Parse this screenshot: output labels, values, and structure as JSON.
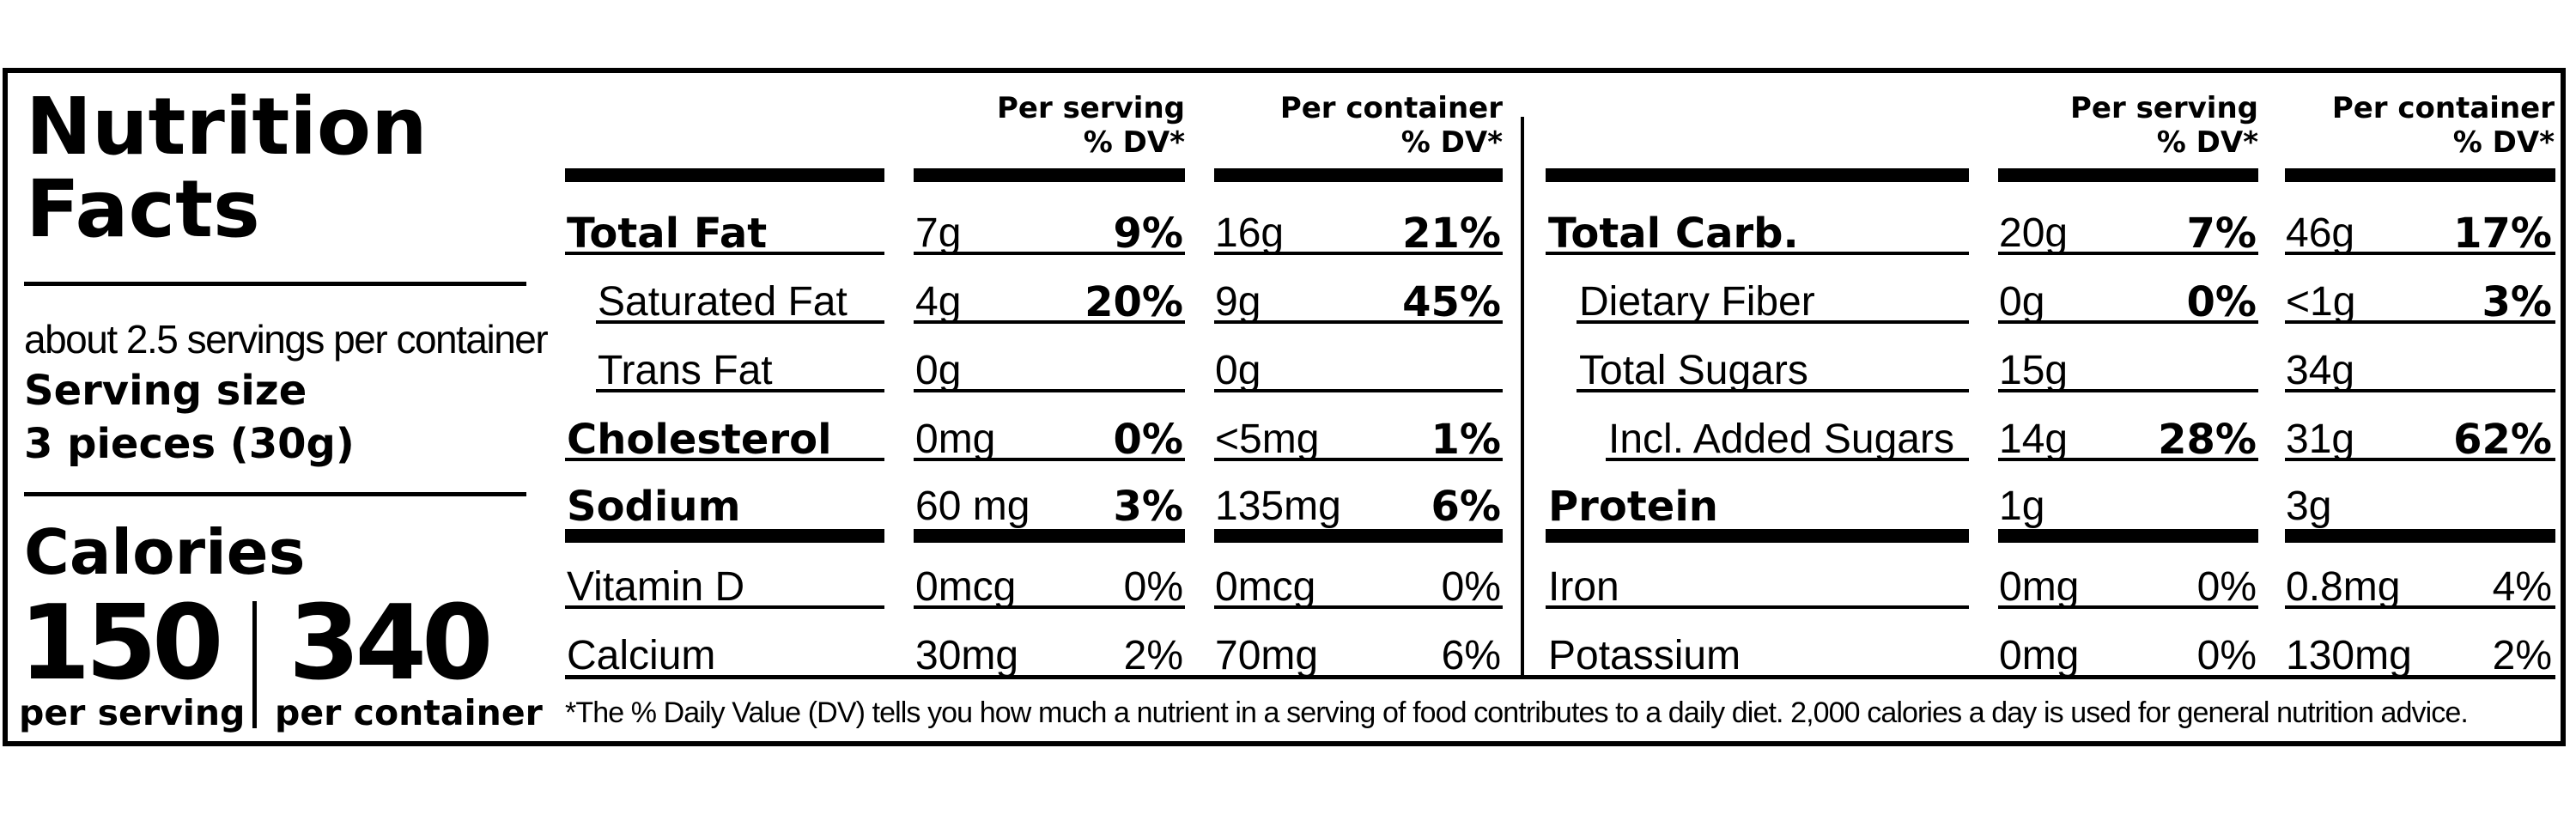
{
  "header": {
    "title_line1": "Nutrition",
    "title_line2": "Facts"
  },
  "servings": {
    "per_container": "about 2.5 servings per container",
    "size_label": "Serving size",
    "size_value": "3 pieces (30g)"
  },
  "calories": {
    "label": "Calories",
    "per_serving_value": "150",
    "per_serving_label": "per serving",
    "per_container_value": "340",
    "per_container_label": "per container"
  },
  "col_headers": {
    "per_serving": "Per serving",
    "per_container": "Per container",
    "dv": "% DV*"
  },
  "left_rows": [
    {
      "name": "Total Fat",
      "bold": true,
      "indent": 0,
      "s_amt": "7g",
      "s_dv": "9%",
      "c_amt": "16g",
      "c_dv": "21%"
    },
    {
      "name": "Saturated Fat",
      "bold": false,
      "indent": 1,
      "s_amt": "4g",
      "s_dv": "20%",
      "c_amt": "9g",
      "c_dv": "45%"
    },
    {
      "name": "Trans Fat",
      "bold": false,
      "indent": 1,
      "s_amt": "0g",
      "s_dv": "",
      "c_amt": "0g",
      "c_dv": ""
    },
    {
      "name": "Cholesterol",
      "bold": true,
      "indent": 0,
      "s_amt": "0mg",
      "s_dv": "0%",
      "c_amt": "<5mg",
      "c_dv": "1%"
    },
    {
      "name": "Sodium",
      "bold": true,
      "indent": 0,
      "s_amt": "60 mg",
      "s_dv": "3%",
      "c_amt": "135mg",
      "c_dv": "6%"
    },
    {
      "name": "Vitamin D",
      "bold": false,
      "indent": 0,
      "s_amt": "0mcg",
      "s_dv": "0%",
      "c_amt": "0mcg",
      "c_dv": "0%"
    },
    {
      "name": "Calcium",
      "bold": false,
      "indent": 0,
      "s_amt": "30mg",
      "s_dv": "2%",
      "c_amt": "70mg",
      "c_dv": "6%"
    }
  ],
  "right_rows": [
    {
      "name": "Total Carb.",
      "bold": true,
      "indent": 0,
      "s_amt": "20g",
      "s_dv": "7%",
      "c_amt": "46g",
      "c_dv": "17%"
    },
    {
      "name": "Dietary Fiber",
      "bold": false,
      "indent": 1,
      "s_amt": "0g",
      "s_dv": "0%",
      "c_amt": "<1g",
      "c_dv": "3%"
    },
    {
      "name": "Total Sugars",
      "bold": false,
      "indent": 1,
      "s_amt": "15g",
      "s_dv": "",
      "c_amt": "34g",
      "c_dv": ""
    },
    {
      "name": "Incl. Added Sugars",
      "bold": false,
      "indent": 2,
      "s_amt": "14g",
      "s_dv": "28%",
      "c_amt": "31g",
      "c_dv": "62%"
    },
    {
      "name": "Protein",
      "bold": true,
      "indent": 0,
      "s_amt": "1g",
      "s_dv": "",
      "c_amt": "3g",
      "c_dv": ""
    },
    {
      "name": "Iron",
      "bold": false,
      "indent": 0,
      "s_amt": "0mg",
      "s_dv": "0%",
      "c_amt": "0.8mg",
      "c_dv": "4%"
    },
    {
      "name": "Potassium",
      "bold": false,
      "indent": 0,
      "s_amt": "0mg",
      "s_dv": "0%",
      "c_amt": "130mg",
      "c_dv": "2%"
    }
  ],
  "footnote": "*The % Daily Value (DV) tells you how much a nutrient in a serving of food contributes to a daily diet. 2,000 calories a day is used for general nutrition advice."
}
